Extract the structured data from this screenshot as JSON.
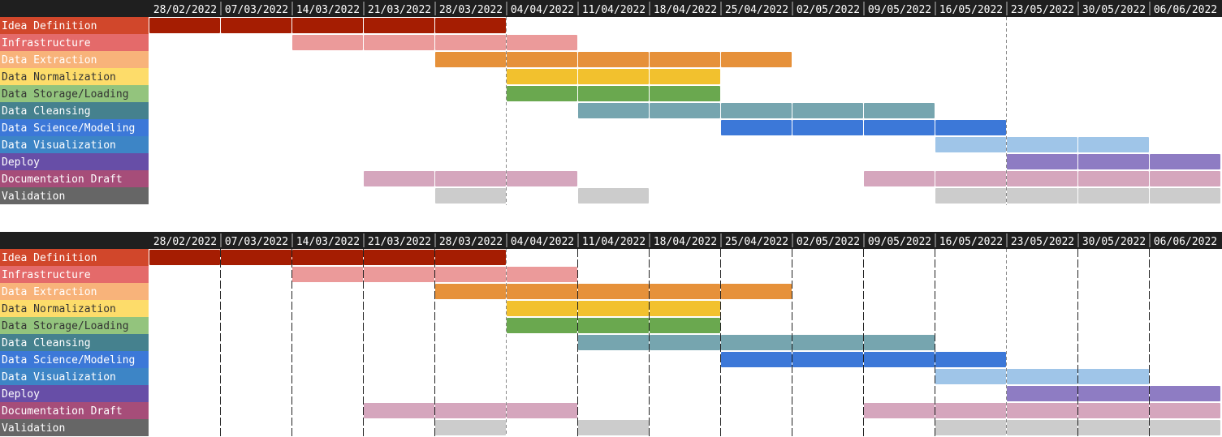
{
  "chart_data": [
    {
      "type": "gantt",
      "gridlines": "monthly",
      "dates": [
        "28/02/2022",
        "07/03/2022",
        "14/03/2022",
        "21/03/2022",
        "28/03/2022",
        "04/04/2022",
        "11/04/2022",
        "18/04/2022",
        "25/04/2022",
        "02/05/2022",
        "09/05/2022",
        "16/05/2022",
        "23/05/2022",
        "30/05/2022",
        "06/06/2022"
      ],
      "tasks": [
        {
          "name": "Idea Definition",
          "label_bg": "#d1472b",
          "label_color": "#ffffff",
          "bar_color": "#a51d02",
          "segments": [
            [
              0,
              4
            ]
          ]
        },
        {
          "name": "Infrastructure",
          "label_bg": "#e46a6a",
          "label_color": "#ffffff",
          "bar_color": "#eb9a9a",
          "segments": [
            [
              2,
              5
            ]
          ]
        },
        {
          "name": "Data Extraction",
          "label_bg": "#f8b37a",
          "label_color": "#ffffff",
          "bar_color": "#e6913a",
          "segments": [
            [
              4,
              8
            ]
          ]
        },
        {
          "name": "Data Normalization",
          "label_bg": "#fddc6a",
          "label_color": "#333333",
          "bar_color": "#f2c12e",
          "segments": [
            [
              5,
              7
            ]
          ]
        },
        {
          "name": "Data Storage/Loading",
          "label_bg": "#93c47d",
          "label_color": "#333333",
          "bar_color": "#6aa84f",
          "segments": [
            [
              5,
              7
            ]
          ]
        },
        {
          "name": "Data Cleansing",
          "label_bg": "#45818e",
          "label_color": "#ffffff",
          "bar_color": "#76a5af",
          "segments": [
            [
              6,
              10
            ]
          ]
        },
        {
          "name": "Data Science/Modeling",
          "label_bg": "#3c78d8",
          "label_color": "#ffffff",
          "bar_color": "#3c78d8",
          "segments": [
            [
              8,
              11
            ]
          ]
        },
        {
          "name": "Data Visualization",
          "label_bg": "#3d85c6",
          "label_color": "#ffffff",
          "bar_color": "#9fc5e8",
          "segments": [
            [
              11,
              13
            ]
          ]
        },
        {
          "name": "Deploy",
          "label_bg": "#674ea7",
          "label_color": "#ffffff",
          "bar_color": "#8e7cc3",
          "segments": [
            [
              12,
              14
            ]
          ]
        },
        {
          "name": "Documentation Draft",
          "label_bg": "#a64d79",
          "label_color": "#ffffff",
          "bar_color": "#d5a6bd",
          "segments": [
            [
              3,
              5
            ],
            [
              10,
              14
            ]
          ]
        },
        {
          "name": "Validation",
          "label_bg": "#666666",
          "label_color": "#ffffff",
          "bar_color": "#cccccc",
          "segments": [
            [
              4,
              4
            ],
            [
              6,
              6
            ],
            [
              11,
              14
            ]
          ]
        }
      ]
    },
    {
      "type": "gantt",
      "gridlines": "weekly",
      "dates": [
        "28/02/2022",
        "07/03/2022",
        "14/03/2022",
        "21/03/2022",
        "28/03/2022",
        "04/04/2022",
        "11/04/2022",
        "18/04/2022",
        "25/04/2022",
        "02/05/2022",
        "09/05/2022",
        "16/05/2022",
        "23/05/2022",
        "30/05/2022",
        "06/06/2022"
      ],
      "tasks": [
        {
          "name": "Idea Definition",
          "label_bg": "#d1472b",
          "label_color": "#ffffff",
          "bar_color": "#a51d02",
          "segments": [
            [
              0,
              4
            ]
          ]
        },
        {
          "name": "Infrastructure",
          "label_bg": "#e46a6a",
          "label_color": "#ffffff",
          "bar_color": "#eb9a9a",
          "segments": [
            [
              2,
              5
            ]
          ]
        },
        {
          "name": "Data Extraction",
          "label_bg": "#f8b37a",
          "label_color": "#ffffff",
          "bar_color": "#e6913a",
          "segments": [
            [
              4,
              8
            ]
          ]
        },
        {
          "name": "Data Normalization",
          "label_bg": "#fddc6a",
          "label_color": "#333333",
          "bar_color": "#f2c12e",
          "segments": [
            [
              5,
              7
            ]
          ]
        },
        {
          "name": "Data Storage/Loading",
          "label_bg": "#93c47d",
          "label_color": "#333333",
          "bar_color": "#6aa84f",
          "segments": [
            [
              5,
              7
            ]
          ]
        },
        {
          "name": "Data Cleansing",
          "label_bg": "#45818e",
          "label_color": "#ffffff",
          "bar_color": "#76a5af",
          "segments": [
            [
              6,
              10
            ]
          ]
        },
        {
          "name": "Data Science/Modeling",
          "label_bg": "#3c78d8",
          "label_color": "#ffffff",
          "bar_color": "#3c78d8",
          "segments": [
            [
              8,
              11
            ]
          ]
        },
        {
          "name": "Data Visualization",
          "label_bg": "#3d85c6",
          "label_color": "#ffffff",
          "bar_color": "#9fc5e8",
          "segments": [
            [
              11,
              13
            ]
          ]
        },
        {
          "name": "Deploy",
          "label_bg": "#674ea7",
          "label_color": "#ffffff",
          "bar_color": "#8e7cc3",
          "segments": [
            [
              12,
              14
            ]
          ]
        },
        {
          "name": "Documentation Draft",
          "label_bg": "#a64d79",
          "label_color": "#ffffff",
          "bar_color": "#d5a6bd",
          "segments": [
            [
              3,
              5
            ],
            [
              10,
              14
            ]
          ]
        },
        {
          "name": "Validation",
          "label_bg": "#666666",
          "label_color": "#ffffff",
          "bar_color": "#cccccc",
          "segments": [
            [
              4,
              4
            ],
            [
              6,
              6
            ],
            [
              11,
              14
            ]
          ]
        }
      ]
    }
  ],
  "colors": {
    "header_bg": "#1f1f1f",
    "header_text": "#ffffff",
    "gridline": "#555555",
    "divider": "#aaaaaa"
  }
}
